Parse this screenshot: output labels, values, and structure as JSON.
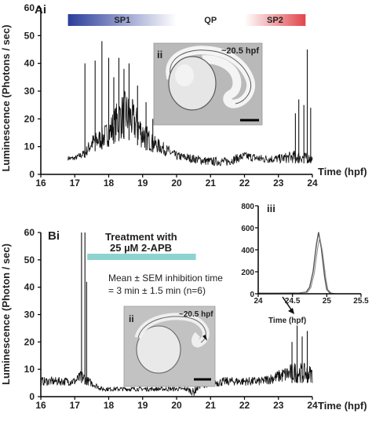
{
  "chart_data": [
    {
      "panel": "Ai",
      "type": "line",
      "xlabel": "Time (hpf)",
      "ylabel": "Luminescence (Photons / sec)",
      "xlim": [
        16,
        24
      ],
      "ylim": [
        0,
        60
      ],
      "xticks": [
        16,
        17,
        18,
        19,
        20,
        21,
        22,
        23,
        24
      ],
      "yticks": [
        0,
        10,
        20,
        30,
        40,
        50,
        60
      ],
      "periods": [
        {
          "label": "SP1",
          "start": 16.8,
          "end": 20.0,
          "color": "#2b3d9a"
        },
        {
          "label": "QP",
          "start": 20.0,
          "end": 22.0,
          "color": "#ffffff"
        },
        {
          "label": "SP2",
          "start": 22.0,
          "end": 23.8,
          "color": "#e0454a"
        }
      ],
      "inset": {
        "label": "ii",
        "caption": "~20.5 hpf"
      },
      "envelope": [
        [
          16.8,
          5,
          6
        ],
        [
          17.0,
          5,
          6
        ],
        [
          17.3,
          6,
          8
        ],
        [
          17.5,
          8,
          12
        ],
        [
          17.8,
          9,
          14
        ],
        [
          18.0,
          10,
          16
        ],
        [
          18.3,
          12,
          22
        ],
        [
          18.5,
          13,
          24
        ],
        [
          18.8,
          11,
          20
        ],
        [
          19.0,
          9,
          16
        ],
        [
          19.3,
          8,
          12
        ],
        [
          19.6,
          7,
          10
        ],
        [
          20.0,
          5,
          7
        ],
        [
          20.5,
          4,
          6
        ],
        [
          21.0,
          3,
          5
        ],
        [
          21.5,
          3,
          5
        ],
        [
          22.0,
          5,
          7
        ],
        [
          22.5,
          4,
          6
        ],
        [
          23.0,
          4,
          6
        ],
        [
          23.5,
          4,
          7
        ],
        [
          24.0,
          4,
          6
        ]
      ],
      "spikes": [
        [
          17.3,
          40
        ],
        [
          17.6,
          41
        ],
        [
          17.8,
          48
        ],
        [
          18.0,
          42
        ],
        [
          18.15,
          35
        ],
        [
          18.3,
          42
        ],
        [
          18.45,
          38
        ],
        [
          18.6,
          40
        ],
        [
          18.85,
          32
        ],
        [
          19.1,
          26
        ],
        [
          19.3,
          20
        ],
        [
          23.5,
          22
        ],
        [
          23.6,
          27
        ],
        [
          23.75,
          25
        ],
        [
          23.85,
          45
        ],
        [
          23.95,
          24
        ]
      ]
    },
    {
      "panel": "Bi",
      "type": "line",
      "xlabel": "Time (hpf)",
      "ylabel": "Luminescence (Photon / sec)",
      "xlim": [
        16,
        24
      ],
      "ylim": [
        0,
        60
      ],
      "xticks": [
        16,
        17,
        18,
        19,
        20,
        21,
        22,
        23,
        24
      ],
      "yticks": [
        0,
        10,
        20,
        30,
        40,
        50,
        60
      ],
      "treatment": {
        "label_line1": "Treatment with",
        "label_line2": "25 µM 2-APB",
        "start": 17.3,
        "end": 20.5,
        "color": "#8fd3d0"
      },
      "annotation": {
        "line1": "Mean ± SEM inhibition time",
        "line2": "= 3 min ± 1.5 min (n=6)"
      },
      "inset": {
        "label": "ii",
        "caption": "~20.5 hpf"
      },
      "envelope": [
        [
          16.0,
          4,
          6
        ],
        [
          16.5,
          4,
          6
        ],
        [
          17.0,
          4,
          6
        ],
        [
          17.2,
          5,
          8
        ],
        [
          17.4,
          4,
          6
        ],
        [
          17.8,
          2,
          3
        ],
        [
          18.5,
          2,
          3
        ],
        [
          19.5,
          2,
          3
        ],
        [
          20.3,
          2,
          3
        ],
        [
          20.5,
          0,
          2
        ],
        [
          20.7,
          3,
          5
        ],
        [
          21.5,
          4,
          6
        ],
        [
          22.5,
          4,
          6
        ],
        [
          23.0,
          5,
          8
        ],
        [
          23.5,
          5,
          10
        ],
        [
          24.0,
          5,
          9
        ]
      ],
      "spikes": [
        [
          17.2,
          60
        ],
        [
          17.3,
          60
        ],
        [
          17.35,
          42
        ],
        [
          23.4,
          20
        ],
        [
          23.55,
          26
        ],
        [
          23.7,
          22
        ],
        [
          23.85,
          24
        ]
      ]
    },
    {
      "panel": "iii",
      "type": "line",
      "xlabel": "Time (hpf)",
      "xlim": [
        24,
        25.5
      ],
      "ylim": [
        0,
        800
      ],
      "xticks": [
        24,
        24.5,
        25,
        25.5
      ],
      "yticks": [
        0,
        200,
        400,
        600,
        800
      ],
      "points": [
        [
          24.0,
          5
        ],
        [
          24.3,
          5
        ],
        [
          24.6,
          8
        ],
        [
          24.7,
          15
        ],
        [
          24.75,
          60
        ],
        [
          24.8,
          200
        ],
        [
          24.85,
          450
        ],
        [
          24.88,
          560
        ],
        [
          24.92,
          420
        ],
        [
          24.97,
          150
        ],
        [
          25.0,
          40
        ],
        [
          25.05,
          5
        ],
        [
          25.1,
          2
        ]
      ]
    }
  ]
}
